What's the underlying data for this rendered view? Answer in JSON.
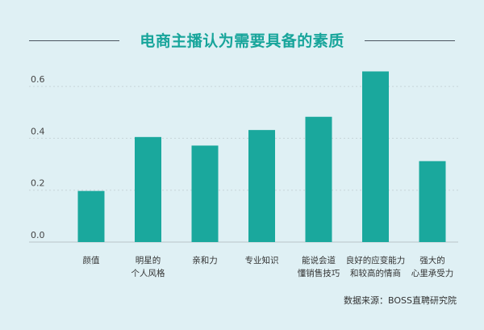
{
  "chart_data": {
    "type": "bar",
    "title": "电商主播认为需要具备的素质",
    "categories": [
      [
        "颜值"
      ],
      [
        "明星的",
        "个人风格"
      ],
      [
        "亲和力"
      ],
      [
        "专业知识"
      ],
      [
        "能说会道",
        "懂销售技巧"
      ],
      [
        "良好的应变能力",
        "和较高的情商"
      ],
      [
        "强大的",
        "心里承受力"
      ]
    ],
    "values": [
      0.197,
      0.405,
      0.372,
      0.432,
      0.483,
      0.658,
      0.312
    ],
    "yticks": [
      "0.0",
      "0.2",
      "0.4",
      "0.6"
    ],
    "ylim": [
      0,
      0.7
    ],
    "grid": true,
    "bar_color": "#1aa89d",
    "source": "数据来源：BOSS直聘研究院"
  }
}
